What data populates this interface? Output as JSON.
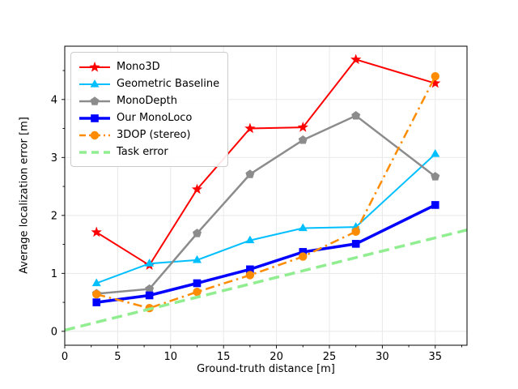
{
  "figure": {
    "background": "#ffffff",
    "grid_color": "#e8e8e8",
    "spine_color": "#000000",
    "text_color": "#000000"
  },
  "chart_data": {
    "type": "line",
    "title": "",
    "xlabel": "Ground-truth distance [m]",
    "ylabel": "Average localization error [m]",
    "xlim": [
      0,
      38
    ],
    "ylim": [
      -0.24,
      4.92
    ],
    "xticks": [
      0,
      5,
      10,
      15,
      20,
      25,
      30,
      35
    ],
    "yticks": [
      0,
      1,
      2,
      3,
      4
    ],
    "minor_xtick_step": 2.5,
    "minor_ytick_step": 0.5,
    "grid": true,
    "legend_position": "upper-left",
    "x": [
      3,
      8,
      12.5,
      17.5,
      22.5,
      27.5,
      35
    ],
    "series": [
      {
        "name": "Mono3D",
        "color": "#ff0000",
        "marker": "star",
        "line": "solid",
        "width": 2,
        "values": [
          1.71,
          1.14,
          2.45,
          3.5,
          3.52,
          4.69,
          4.28
        ]
      },
      {
        "name": "Geometric Baseline",
        "color": "#00bfff",
        "marker": "triangle",
        "line": "solid",
        "width": 2,
        "values": [
          0.83,
          1.17,
          1.23,
          1.57,
          1.78,
          1.8,
          3.06
        ]
      },
      {
        "name": "MonoDepth",
        "color": "#8c8c8c",
        "marker": "pentagon",
        "line": "solid",
        "width": 2.5,
        "values": [
          0.65,
          0.73,
          1.69,
          2.71,
          3.3,
          3.72,
          2.67
        ]
      },
      {
        "name": "Our MonoLoco",
        "color": "#0000ff",
        "marker": "square",
        "line": "solid",
        "width": 3.5,
        "values": [
          0.5,
          0.62,
          0.83,
          1.07,
          1.37,
          1.51,
          2.18
        ]
      },
      {
        "name": "3DOP (stereo)",
        "color": "#ff8c00",
        "marker": "circle",
        "line": "dashdot",
        "width": 2.5,
        "values": [
          0.64,
          0.4,
          0.68,
          0.97,
          1.29,
          1.72,
          4.4
        ]
      },
      {
        "name": "Task error",
        "color": "#90ee90",
        "marker": "none",
        "line": "dashed",
        "width": 3.5,
        "x": [
          0,
          38
        ],
        "values": [
          0.02,
          1.75
        ]
      }
    ]
  }
}
